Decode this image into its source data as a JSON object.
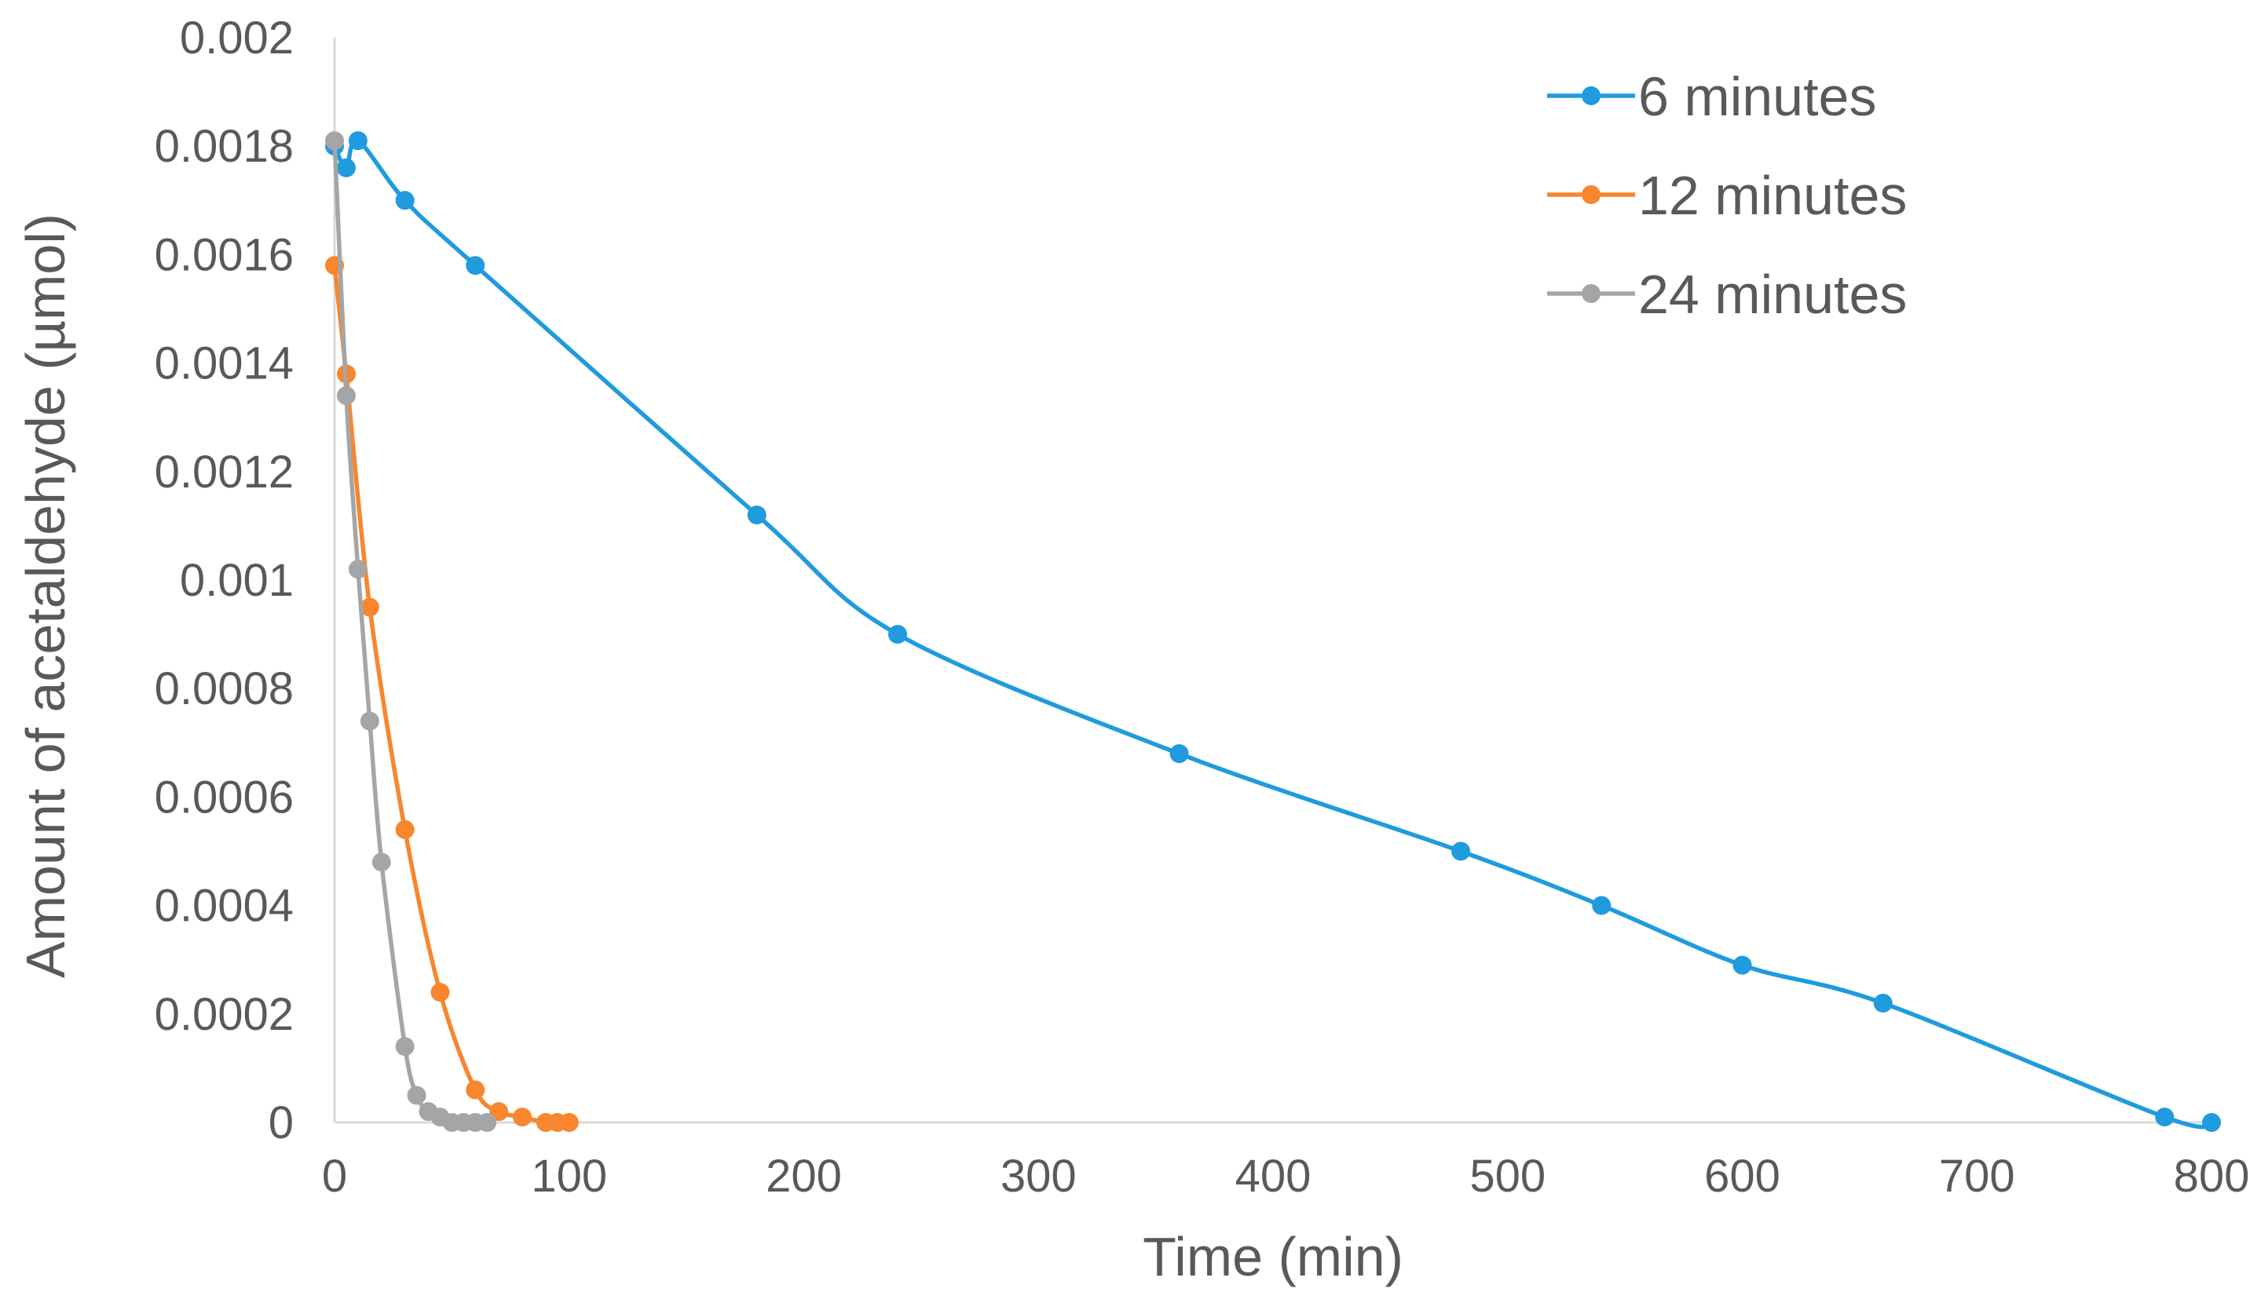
{
  "chart_data": {
    "type": "line",
    "title": "",
    "xlabel": "Time (min)",
    "ylabel": "Amount of acetaldehyde (µmol)",
    "xlim": [
      0,
      800
    ],
    "ylim": [
      0,
      0.002
    ],
    "x_ticks": [
      0,
      100,
      200,
      300,
      400,
      500,
      600,
      700,
      800
    ],
    "x_tick_labels": [
      "0",
      "100",
      "200",
      "300",
      "400",
      "500",
      "600",
      "700",
      "800"
    ],
    "y_ticks": [
      0,
      0.0002,
      0.0004,
      0.0006,
      0.0008,
      0.001,
      0.0012,
      0.0014,
      0.0016,
      0.0018,
      0.002
    ],
    "y_tick_labels": [
      "0",
      "0.0002",
      "0.0004",
      "0.0006",
      "0.0008",
      "0.001",
      "0.0012",
      "0.0014",
      "0.0016",
      "0.0018",
      "0.002"
    ],
    "grid": false,
    "legend_position": "top-right",
    "series": [
      {
        "name": "6 minutes",
        "color": "#1F9BDE",
        "x": [
          0,
          5,
          10,
          30,
          60,
          180,
          240,
          360,
          480,
          540,
          600,
          660,
          780,
          800
        ],
        "y": [
          0.0018,
          0.00176,
          0.00181,
          0.0017,
          0.00158,
          0.00112,
          0.0009,
          0.00068,
          0.0005,
          0.0004,
          0.00029,
          0.00022,
          1e-05,
          0
        ]
      },
      {
        "name": "12 minutes",
        "color": "#F7862F",
        "x": [
          0,
          5,
          15,
          30,
          45,
          60,
          70,
          80,
          90,
          95,
          100
        ],
        "y": [
          0.00158,
          0.00138,
          0.00095,
          0.00054,
          0.00024,
          6e-05,
          2e-05,
          1e-05,
          0,
          0,
          0
        ]
      },
      {
        "name": "24 minutes",
        "color": "#A5A5A5",
        "x": [
          0,
          5,
          10,
          15,
          20,
          30,
          35,
          40,
          45,
          50,
          55,
          60,
          65
        ],
        "y": [
          0.00181,
          0.00134,
          0.00102,
          0.00074,
          0.00048,
          0.00014,
          5e-05,
          2e-05,
          1e-05,
          0,
          0,
          0,
          0
        ]
      }
    ]
  }
}
